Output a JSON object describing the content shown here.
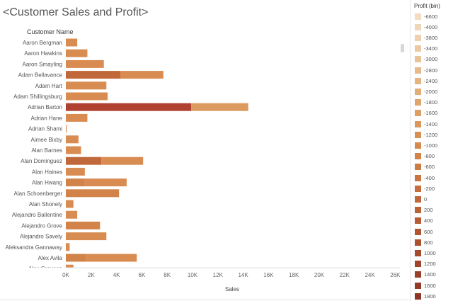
{
  "title": {
    "prefix": "<",
    "text": "Customer Sales and Profit",
    "suffix": ">"
  },
  "column_header": "Customer Name",
  "legend": {
    "title": "Profit (bin)",
    "items": [
      "-6600",
      "-4000",
      "-3800",
      "-3400",
      "-3000",
      "-2800",
      "-2400",
      "-2000",
      "-1800",
      "-1600",
      "-1400",
      "-1200",
      "-1000",
      "-800",
      "-600",
      "-400",
      "-200",
      "0",
      "200",
      "400",
      "600",
      "800",
      "1000",
      "1200",
      "1400",
      "1600",
      "1800"
    ],
    "colors": [
      "#f2dcc2",
      "#f0d6b8",
      "#eed0ad",
      "#ecc9a2",
      "#e9c297",
      "#e7bb8c",
      "#e4b481",
      "#e2ad77",
      "#dfa66d",
      "#dd9f64",
      "#da985c",
      "#d79155",
      "#d48a4f",
      "#d1834a",
      "#cd7c45",
      "#c97541",
      "#c56e3e",
      "#c1683b",
      "#bc6238",
      "#b75c35",
      "#b25632",
      "#ac5030",
      "#a64a2e",
      "#a0452c",
      "#9a402a",
      "#943b28",
      "#8e3626"
    ]
  },
  "chart_data": {
    "type": "bar",
    "orientation": "horizontal",
    "title": "<Customer Sales and Profit>",
    "xlabel": "Sales",
    "ylabel": "Customer Name",
    "xlim": [
      0,
      26000
    ],
    "xticks": [
      0,
      2000,
      4000,
      6000,
      8000,
      10000,
      12000,
      14000,
      16000,
      18000,
      20000,
      22000,
      24000,
      26000
    ],
    "xtick_labels": [
      "0K",
      "2K",
      "4K",
      "6K",
      "8K",
      "10K",
      "12K",
      "14K",
      "16K",
      "18K",
      "20K",
      "22K",
      "24K",
      "26K"
    ],
    "grid": false,
    "legend_position": "right",
    "categories": [
      "Aaron Bergman",
      "Aaron Hawkins",
      "Aaron Smayling",
      "Adam Bellavance",
      "Adam Hart",
      "Adam Shillingsburg",
      "Adrian Barton",
      "Adrian Hane",
      "Adrian Shami",
      "Aimee Bixby",
      "Alan Barnes",
      "Alan Dominguez",
      "Alan Haines",
      "Alan Hwang",
      "Alan Schoenberger",
      "Alan Shonely",
      "Alejandro Ballentine",
      "Alejandro Grove",
      "Alejandro Savely",
      "Aleksandra Gannaway",
      "Alex Avila",
      "Alex Grayson"
    ],
    "series": [
      {
        "values": [
          900,
          1700,
          3000,
          4300,
          3200,
          3300,
          9900,
          1700,
          50,
          1000,
          1200,
          2800,
          1500,
          1500,
          4200,
          600,
          900,
          2700,
          3200,
          300,
          1600,
          600
        ],
        "colors": [
          "#d98c52",
          "#d98c52",
          "#d98c52",
          "#c1683b",
          "#d98c52",
          "#d98c52",
          "#b0402f",
          "#d98c52",
          "#d98c52",
          "#d98c52",
          "#d98c52",
          "#c1683b",
          "#d98c52",
          "#d1834a",
          "#d1834a",
          "#d98c52",
          "#d98c52",
          "#d1834a",
          "#d98c52",
          "#d98c52",
          "#d1834a",
          "#d98c52"
        ]
      },
      {
        "values": [
          0,
          0,
          0,
          3400,
          0,
          0,
          4500,
          0,
          0,
          0,
          0,
          3300,
          0,
          3300,
          0,
          0,
          0,
          0,
          0,
          0,
          4000,
          0
        ],
        "colors": [
          "#d98c52",
          "#d98c52",
          "#d98c52",
          "#d98c52",
          "#d98c52",
          "#d98c52",
          "#dc9a5e",
          "#d98c52",
          "#d98c52",
          "#d98c52",
          "#d98c52",
          "#d98c52",
          "#d98c52",
          "#d98c52",
          "#d98c52",
          "#d98c52",
          "#d98c52",
          "#d98c52",
          "#d98c52",
          "#d98c52",
          "#d98c52",
          "#d98c52"
        ]
      }
    ]
  }
}
